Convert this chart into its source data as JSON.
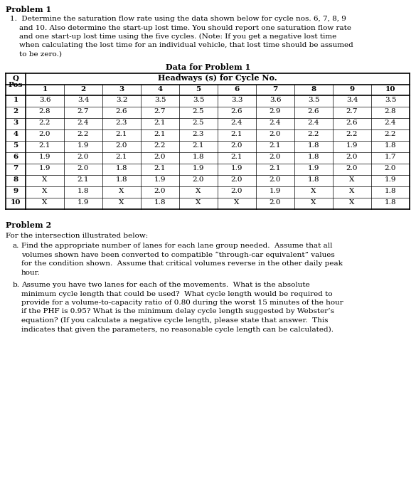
{
  "problem1_title": "Problem 1",
  "table_title": "Data for Problem 1",
  "headways_header": "Headways (s) for Cycle No.",
  "row_labels": [
    "1",
    "2",
    "3",
    "4",
    "5",
    "6",
    "7",
    "8",
    "9",
    "10"
  ],
  "col_labels": [
    "1",
    "2",
    "3",
    "4",
    "5",
    "6",
    "7",
    "8",
    "9",
    "10"
  ],
  "table_data": [
    [
      "3.6",
      "3.4",
      "3.2",
      "3.5",
      "3.5",
      "3.3",
      "3.6",
      "3.5",
      "3.4",
      "3.5"
    ],
    [
      "2.8",
      "2.7",
      "2.6",
      "2.7",
      "2.5",
      "2.6",
      "2.9",
      "2.6",
      "2.7",
      "2.8"
    ],
    [
      "2.2",
      "2.4",
      "2.3",
      "2.1",
      "2.5",
      "2.4",
      "2.4",
      "2.4",
      "2.6",
      "2.4"
    ],
    [
      "2.0",
      "2.2",
      "2.1",
      "2.1",
      "2.3",
      "2.1",
      "2.0",
      "2.2",
      "2.2",
      "2.2"
    ],
    [
      "2.1",
      "1.9",
      "2.0",
      "2.2",
      "2.1",
      "2.0",
      "2.1",
      "1.8",
      "1.9",
      "1.8"
    ],
    [
      "1.9",
      "2.0",
      "2.1",
      "2.0",
      "1.8",
      "2.1",
      "2.0",
      "1.8",
      "2.0",
      "1.7"
    ],
    [
      "1.9",
      "2.0",
      "1.8",
      "2.1",
      "1.9",
      "1.9",
      "2.1",
      "1.9",
      "2.0",
      "2.0"
    ],
    [
      "X",
      "2.1",
      "1.8",
      "1.9",
      "2.0",
      "2.0",
      "2.0",
      "1.8",
      "X",
      "1.9"
    ],
    [
      "X",
      "1.8",
      "X",
      "2.0",
      "X",
      "2.0",
      "1.9",
      "X",
      "X",
      "1.8"
    ],
    [
      "X",
      "1.9",
      "X",
      "1.8",
      "X",
      "X",
      "2.0",
      "X",
      "X",
      "1.8"
    ]
  ],
  "problem2_title": "Problem 2",
  "problem2_intro": "For the intersection illustrated below:",
  "problem2_a_label": "a.",
  "problem2_a_lines": [
    "Find the appropriate number of lanes for each lane group needed.  Assume that all",
    "volumes shown have been converted to compatible “through-car equivalent” values",
    "for the condition shown.  Assume that critical volumes reverse in the other daily peak",
    "hour."
  ],
  "problem2_b_label": "b.",
  "problem2_b_lines": [
    "Assume you have two lanes for each of the movements.  What is the absolute",
    "minimum cycle length that could be used?  What cycle length would be required to",
    "provide for a volume-to-capacity ratio of 0.80 during the worst 15 minutes of the hour",
    "if the PHF is 0.95? What is the minimum delay cycle length suggested by Webster’s",
    "equation? (If you calculate a negative cycle length, please state that answer.  This",
    "indicates that given the parameters, no reasonable cycle length can be calculated)."
  ],
  "p1_lines": [
    "1.  Determine the saturation flow rate using the data shown below for cycle nos. 6, 7, 8, 9",
    "    and 10. Also determine the start-up lost time. You should report one saturation flow rate",
    "    and one start-up lost time using the five cycles. (Note: If you get a negative lost time",
    "    when calculating the lost time for an individual vehicle, that lost time should be assumed",
    "    to be zero.)"
  ],
  "bg_color": "#ffffff",
  "text_color": "#000000"
}
